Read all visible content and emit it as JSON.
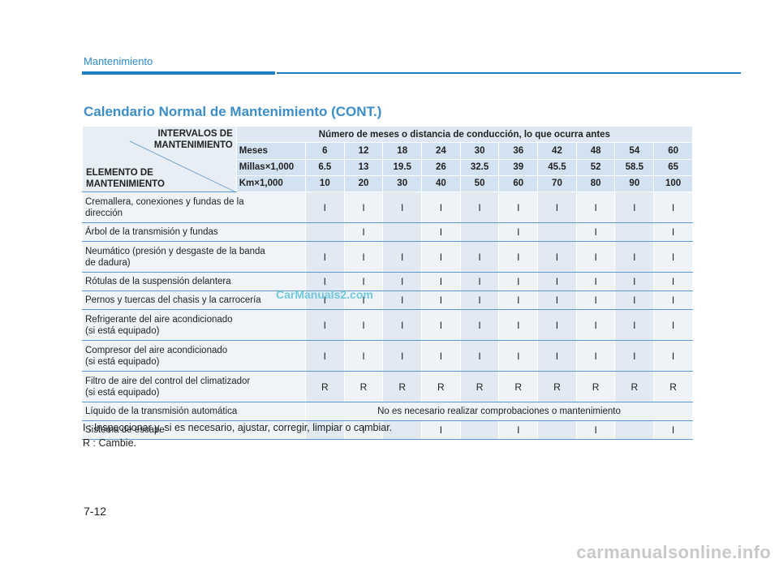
{
  "header": {
    "section": "Mantenimiento"
  },
  "title": "Calendario Normal de Mantenimiento (CONT.)",
  "table": {
    "corner_top": [
      "INTERVALOS DE",
      "MANTENIMIENTO"
    ],
    "corner_bottom": [
      "ELEMENTO DE",
      "MANTENIMIENTO"
    ],
    "span_header": "Número de meses o distancia de conducción, lo que ocurra antes",
    "meses_label": "Meses",
    "meses": [
      "6",
      "12",
      "18",
      "24",
      "30",
      "36",
      "42",
      "48",
      "54",
      "60"
    ],
    "millas_label": "Millas×1,000",
    "millas": [
      "6.5",
      "13",
      "19.5",
      "26",
      "32.5",
      "39",
      "45.5",
      "52",
      "58.5",
      "65"
    ],
    "km_label": "Km×1,000",
    "km": [
      "10",
      "20",
      "30",
      "40",
      "50",
      "60",
      "70",
      "80",
      "90",
      "100"
    ],
    "rows": [
      {
        "item": [
          "Cremallera, conexiones y fundas de la",
          "dirección"
        ],
        "cells": [
          "I",
          "I",
          "I",
          "I",
          "I",
          "I",
          "I",
          "I",
          "I",
          "I"
        ]
      },
      {
        "item": [
          "Árbol de la transmisión y fundas"
        ],
        "cells": [
          "",
          "I",
          "",
          "I",
          "",
          "I",
          "",
          "I",
          "",
          "I"
        ]
      },
      {
        "item": [
          "Neumático (presión y desgaste de la banda",
          "de dadura)"
        ],
        "cells": [
          "I",
          "I",
          "I",
          "I",
          "I",
          "I",
          "I",
          "I",
          "I",
          "I"
        ]
      },
      {
        "item": [
          "Rótulas de la suspensión delantera"
        ],
        "cells": [
          "I",
          "I",
          "I",
          "I",
          "I",
          "I",
          "I",
          "I",
          "I",
          "I"
        ]
      },
      {
        "item": [
          "Pernos y tuercas del chasis y la carrocería"
        ],
        "cells": [
          "I",
          "I",
          "I",
          "I",
          "I",
          "I",
          "I",
          "I",
          "I",
          "I"
        ]
      },
      {
        "item": [
          "Refrigerante del aire acondicionado",
          "(si está equipado)"
        ],
        "cells": [
          "I",
          "I",
          "I",
          "I",
          "I",
          "I",
          "I",
          "I",
          "I",
          "I"
        ]
      },
      {
        "item": [
          "Compresor del aire acondicionado",
          "(si está equipado)"
        ],
        "cells": [
          "I",
          "I",
          "I",
          "I",
          "I",
          "I",
          "I",
          "I",
          "I",
          "I"
        ]
      },
      {
        "item": [
          "Filtro de aire del control del climatizador",
          "(si está equipado)"
        ],
        "cells": [
          "R",
          "R",
          "R",
          "R",
          "R",
          "R",
          "R",
          "R",
          "R",
          "R"
        ]
      },
      {
        "item": [
          "Líquido de la transmisión automática"
        ],
        "note": "No es necesario realizar comprobaciones o mantenimiento"
      },
      {
        "item": [
          "Sistema de escape"
        ],
        "cells": [
          "",
          "I",
          "",
          "I",
          "",
          "I",
          "",
          "I",
          "",
          "I"
        ]
      }
    ]
  },
  "legend": [
    "I   : Inspeccionar y, si es necesario, ajustar, corregir, limpiar o cambiar.",
    "R : Cambie."
  ],
  "page_number": "7-12",
  "watermark": "CarManuals2.com",
  "footer_watermark": "carmanualsonline.info"
}
